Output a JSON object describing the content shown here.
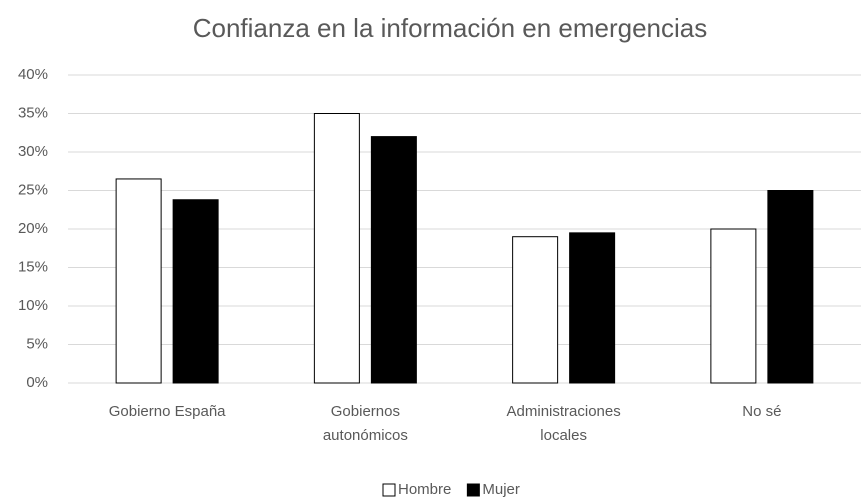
{
  "chart_data": {
    "type": "bar",
    "title": "Confianza en la información en emergencias",
    "categories": [
      "Gobierno España",
      "Gobiernos\nautonómicos",
      "Administraciones\nlocales",
      "No sé"
    ],
    "series": [
      {
        "name": "Hombre",
        "color": "#ffffff",
        "values": [
          26.5,
          35,
          19,
          20
        ]
      },
      {
        "name": "Mujer",
        "color": "#000000",
        "values": [
          23.8,
          32,
          19.5,
          25
        ]
      }
    ],
    "ylim": [
      0,
      40
    ],
    "yticks": [
      {
        "value": 0,
        "label": "0%"
      },
      {
        "value": 5,
        "label": "5%"
      },
      {
        "value": 10,
        "label": "10%"
      },
      {
        "value": 15,
        "label": "15%"
      },
      {
        "value": 20,
        "label": "20%"
      },
      {
        "value": 25,
        "label": "25%"
      },
      {
        "value": 30,
        "label": "30%"
      },
      {
        "value": 35,
        "label": "35%"
      },
      {
        "value": 40,
        "label": "40%"
      }
    ],
    "grid": true,
    "legend": "bottom"
  }
}
